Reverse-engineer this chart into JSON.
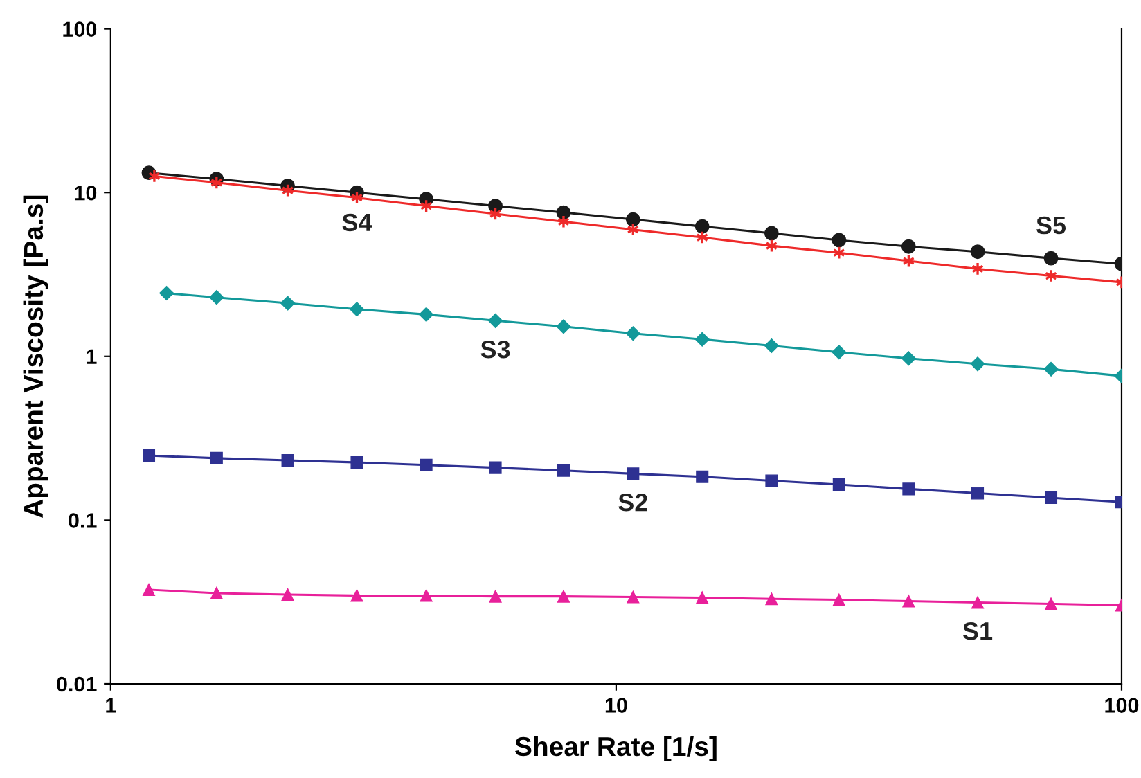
{
  "chart_data": {
    "type": "line",
    "xlabel": "Shear Rate [1/s]",
    "ylabel": "Apparent Viscosity [Pa.s]",
    "log": "xy",
    "xlim": [
      1,
      100
    ],
    "xticks": [
      1,
      10,
      100
    ],
    "ylim": [
      0.01,
      100
    ],
    "yticks": [
      0.01,
      0.1,
      1,
      10,
      100
    ],
    "grid": false,
    "legend": false,
    "series": [
      {
        "name": "S1",
        "color": "#e8209a",
        "marker": "triangle",
        "x": [
          1.19,
          1.62,
          2.24,
          3.07,
          4.21,
          5.77,
          7.87,
          10.8,
          14.8,
          20.3,
          27.6,
          37.9,
          51.9,
          72.5,
          100
        ],
        "values": [
          0.0376,
          0.0358,
          0.0351,
          0.0346,
          0.0346,
          0.0342,
          0.0342,
          0.0339,
          0.0336,
          0.033,
          0.0326,
          0.032,
          0.0314,
          0.0308,
          0.0302
        ]
      },
      {
        "name": "S2",
        "color": "#2e3192",
        "marker": "square",
        "x": [
          1.19,
          1.62,
          2.24,
          3.07,
          4.21,
          5.77,
          7.87,
          10.8,
          14.8,
          20.3,
          27.6,
          37.9,
          51.9,
          72.5,
          100
        ],
        "values": [
          0.248,
          0.239,
          0.232,
          0.225,
          0.217,
          0.209,
          0.201,
          0.192,
          0.184,
          0.174,
          0.165,
          0.155,
          0.146,
          0.137,
          0.129
        ]
      },
      {
        "name": "S3",
        "color": "#13999a",
        "marker": "diamond",
        "x": [
          1.29,
          1.62,
          2.24,
          3.07,
          4.21,
          5.77,
          7.87,
          10.8,
          14.8,
          20.3,
          27.6,
          37.9,
          51.9,
          72.5,
          100
        ],
        "values": [
          2.43,
          2.29,
          2.11,
          1.94,
          1.8,
          1.65,
          1.52,
          1.38,
          1.27,
          1.16,
          1.06,
          0.971,
          0.898,
          0.835,
          0.759
        ]
      },
      {
        "name": "S4",
        "color": "#ee2a2a",
        "marker": "cross",
        "x": [
          1.22,
          1.62,
          2.24,
          3.07,
          4.21,
          5.77,
          7.87,
          10.8,
          14.8,
          20.3,
          27.6,
          37.9,
          51.9,
          72.5,
          100
        ],
        "values": [
          12.6,
          11.5,
          10.3,
          9.3,
          8.28,
          7.41,
          6.64,
          5.94,
          5.32,
          4.73,
          4.29,
          3.82,
          3.42,
          3.1,
          2.83
        ]
      },
      {
        "name": "S5",
        "color": "#1a1a1a",
        "marker": "circle",
        "x": [
          1.19,
          1.62,
          2.24,
          3.07,
          4.21,
          5.77,
          7.87,
          10.8,
          14.8,
          20.3,
          27.6,
          37.9,
          51.9,
          72.5,
          100
        ],
        "values": [
          13.2,
          12.1,
          11.0,
          10.0,
          9.12,
          8.28,
          7.55,
          6.85,
          6.21,
          5.64,
          5.12,
          4.68,
          4.35,
          3.97,
          3.67
        ]
      }
    ]
  }
}
